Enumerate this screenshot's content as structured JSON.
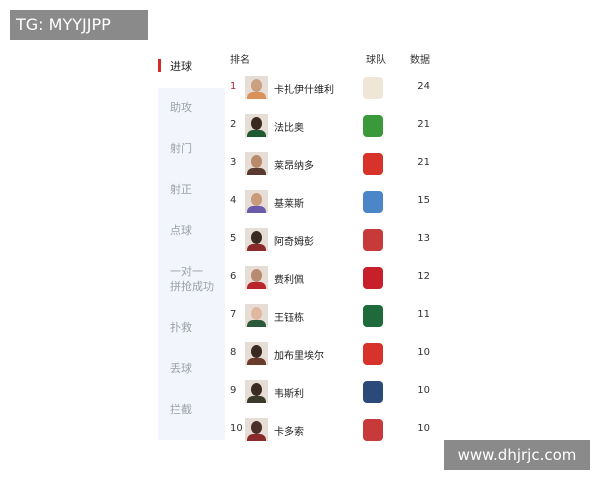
{
  "watermarks": {
    "top_left": "TG: MYYJJPP",
    "bottom_right": "www.dhjrjc.com"
  },
  "sidebar": {
    "items": [
      {
        "label": "进球",
        "active": true
      },
      {
        "label": "助攻"
      },
      {
        "label": "射门"
      },
      {
        "label": "射正"
      },
      {
        "label": "点球"
      },
      {
        "label": "一对一\n拼抢成功"
      },
      {
        "label": "扑救"
      },
      {
        "label": "丢球"
      },
      {
        "label": "拦截"
      }
    ]
  },
  "table": {
    "headers": {
      "rank": "排名",
      "team": "球队",
      "value": "数据"
    },
    "rows": [
      {
        "rank": "1",
        "name": "卡扎伊什维利",
        "value": "24",
        "team_logo": "shandong-taishan-logo",
        "logo_color": "#f0e6d8",
        "skin": "#c9a080",
        "kit": "#d9925a"
      },
      {
        "rank": "2",
        "name": "法比奥",
        "value": "21",
        "team_logo": "beijing-guoan-logo",
        "logo_color": "#3a9a3a",
        "skin": "#3a2a20",
        "kit": "#1f5a30"
      },
      {
        "rank": "3",
        "name": "莱昂纳多",
        "value": "21",
        "team_logo": "shanghai-shenhua-logo",
        "logo_color": "#d8332a",
        "skin": "#b88a6a",
        "kit": "#5a3a30"
      },
      {
        "rank": "4",
        "name": "基莱斯",
        "value": "15",
        "team_logo": "dalian-logo",
        "logo_color": "#4a86c8",
        "skin": "#c89a7a",
        "kit": "#6a5aa8"
      },
      {
        "rank": "5",
        "name": "阿奇姆彭",
        "value": "13",
        "team_logo": "henan-logo",
        "logo_color": "#c83a3a",
        "skin": "#3a2a22",
        "kit": "#8a2a2a"
      },
      {
        "rank": "6",
        "name": "费利佩",
        "value": "12",
        "team_logo": "chengdu-rongcheng-logo",
        "logo_color": "#c8202a",
        "skin": "#b88a70",
        "kit": "#b8252a"
      },
      {
        "rank": "7",
        "name": "王钰栋",
        "value": "11",
        "team_logo": "zhejiang-logo",
        "logo_color": "#1f6a3a",
        "skin": "#e0b8a0",
        "kit": "#2a5a3a"
      },
      {
        "rank": "8",
        "name": "加布里埃尔",
        "value": "10",
        "team_logo": "shanghai-shenhua-logo",
        "logo_color": "#d8332a",
        "skin": "#3a2a22",
        "kit": "#6a3a2a"
      },
      {
        "rank": "9",
        "name": "韦斯利",
        "value": "10",
        "team_logo": "meizhou-logo",
        "logo_color": "#2a4a7a",
        "skin": "#3a2a22",
        "kit": "#3a3a2a"
      },
      {
        "rank": "10",
        "name": "卡多索",
        "value": "10",
        "team_logo": "henan-logo",
        "logo_color": "#c83a3a",
        "skin": "#4a3028",
        "kit": "#8a2a2a"
      }
    ]
  }
}
